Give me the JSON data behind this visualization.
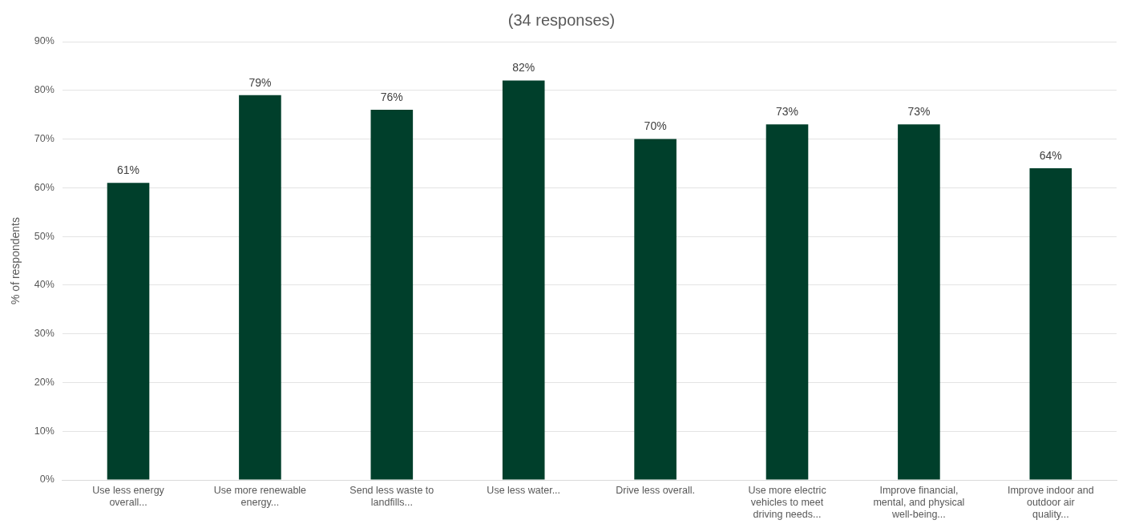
{
  "chart_data": {
    "type": "bar",
    "title": "(34 responses)",
    "ylabel": "% of respondents",
    "categories": [
      "Use less energy overall...",
      "Use more renewable energy...",
      "Send less waste to landfills...",
      "Use less water...",
      "Drive less overall.",
      "Use more electric vehicles to meet driving needs...",
      "Improve financial, mental, and physical well-being...",
      "Improve indoor and outdoor air quality..."
    ],
    "values": [
      61,
      79,
      76,
      82,
      70,
      73,
      73,
      64
    ],
    "value_labels": [
      "61%",
      "79%",
      "76%",
      "82%",
      "70%",
      "73%",
      "73%",
      "64%"
    ],
    "color": "#003f2b",
    "ylim": [
      0,
      90
    ],
    "yticks": [
      {
        "value": 0,
        "label": "0%"
      },
      {
        "value": 10,
        "label": "10%"
      },
      {
        "value": 20,
        "label": "20%"
      },
      {
        "value": 30,
        "label": "30%"
      },
      {
        "value": 40,
        "label": "40%"
      },
      {
        "value": 50,
        "label": "50%"
      },
      {
        "value": 60,
        "label": "60%"
      },
      {
        "value": 70,
        "label": "70%"
      },
      {
        "value": 80,
        "label": "80%"
      },
      {
        "value": 90,
        "label": "90%"
      }
    ],
    "grid": "y",
    "legend": false
  }
}
